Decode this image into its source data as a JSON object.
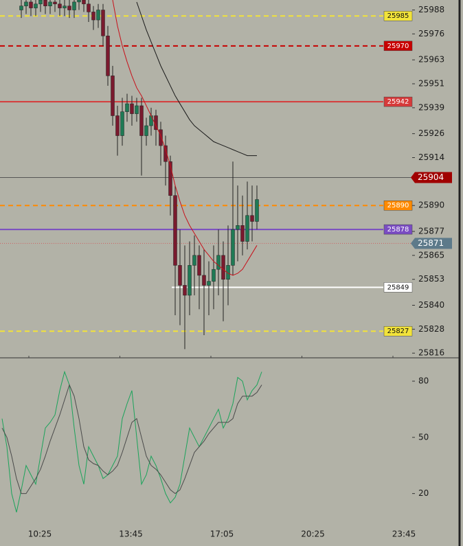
{
  "chart_data": [
    {
      "type": "candlestick",
      "ylim": [
        25814,
        25993
      ],
      "yticks": [
        25988,
        25976,
        25963,
        25951,
        25939,
        25926,
        25914,
        25890,
        25877,
        25865,
        25853,
        25840,
        25828,
        25816
      ],
      "open": [
        25988,
        25990,
        25992,
        25989,
        25991,
        25993,
        25990,
        25992,
        25991,
        25989,
        25990,
        25988,
        25992,
        25993,
        25991,
        25987,
        25983,
        25988,
        25975,
        25955,
        25935,
        25925,
        25937,
        25941,
        25936,
        25940,
        25925,
        25930,
        25935,
        25928,
        25920,
        25912,
        25895,
        25860,
        25850,
        25845,
        25860,
        25865,
        25855,
        25850,
        25852,
        25858,
        25865,
        25853,
        25860,
        25878,
        25880,
        25872,
        25885,
        25882
      ],
      "high": [
        25993,
        25995,
        25995,
        25994,
        25996,
        25996,
        25995,
        25995,
        25994,
        25993,
        25993,
        25995,
        25996,
        25996,
        25994,
        25990,
        25991,
        25991,
        25980,
        25960,
        25940,
        25944,
        25946,
        25945,
        25944,
        25944,
        25934,
        25939,
        25938,
        25932,
        25925,
        25915,
        25900,
        25878,
        25870,
        25872,
        25875,
        25870,
        25868,
        25862,
        25870,
        25878,
        25872,
        25880,
        25912,
        25900,
        25895,
        25902,
        25900,
        25900
      ],
      "low": [
        25984,
        25986,
        25985,
        25985,
        25987,
        25986,
        25986,
        25987,
        25985,
        25985,
        25984,
        25984,
        25988,
        25987,
        25982,
        25978,
        25979,
        25970,
        25950,
        25930,
        25915,
        25920,
        25932,
        25930,
        25932,
        25905,
        25920,
        25925,
        25920,
        25910,
        25900,
        25885,
        25835,
        25830,
        25818,
        25835,
        25845,
        25838,
        25825,
        25835,
        25838,
        25845,
        25832,
        25840,
        25855,
        25862,
        25865,
        25868,
        25872,
        25878
      ],
      "close": [
        25990,
        25992,
        25989,
        25991,
        25993,
        25990,
        25992,
        25991,
        25989,
        25990,
        25988,
        25992,
        25993,
        25991,
        25987,
        25983,
        25988,
        25975,
        25955,
        25935,
        25925,
        25937,
        25941,
        25936,
        25940,
        25925,
        25930,
        25935,
        25928,
        25920,
        25912,
        25895,
        25860,
        25850,
        25845,
        25860,
        25865,
        25855,
        25850,
        25852,
        25858,
        25865,
        25853,
        25860,
        25878,
        25880,
        25872,
        25885,
        25882,
        25893
      ],
      "up_color": "#1f7a55",
      "down_color": "#7a1a2e",
      "lines": [
        {
          "color": "#1a1a1a",
          "values": [
            null,
            null,
            null,
            null,
            null,
            null,
            null,
            null,
            null,
            null,
            null,
            null,
            null,
            null,
            null,
            null,
            null,
            null,
            null,
            null,
            null,
            null,
            null,
            null,
            25992,
            25985,
            25978,
            25972,
            25966,
            25960,
            25955,
            25950,
            25945,
            25941,
            25937,
            25933,
            25930,
            25928,
            25926,
            25924,
            25922,
            25921,
            25920,
            25919,
            25918,
            25917,
            25916,
            25915,
            25915,
            25915
          ]
        },
        {
          "color": "#c8101a",
          "values": [
            null,
            null,
            null,
            null,
            null,
            null,
            null,
            null,
            null,
            null,
            null,
            null,
            null,
            null,
            null,
            null,
            null,
            null,
            null,
            25993,
            25980,
            25970,
            25962,
            25955,
            25949,
            25945,
            25940,
            25935,
            25930,
            25925,
            25918,
            25910,
            25900,
            25892,
            25885,
            25880,
            25876,
            25872,
            25868,
            25865,
            25862,
            25860,
            25858,
            25856,
            25855,
            25856,
            25858,
            25862,
            25866,
            25870
          ]
        }
      ],
      "levels": [
        {
          "value": 25985,
          "color": "#f2e33a",
          "style": "dashed",
          "text_color": "#111111"
        },
        {
          "value": 25970,
          "color": "#c80000",
          "style": "dashed",
          "text_color": "#ffffff"
        },
        {
          "value": 25942,
          "color": "#d63a3a",
          "style": "solid",
          "text_color": "#ffffff"
        },
        {
          "value": 25904,
          "color": "#a00000",
          "style": "price-tag",
          "text_color": "#ffffff"
        },
        {
          "value": 25890,
          "color": "#ff8a00",
          "style": "dashed",
          "text_color": "#ffffff"
        },
        {
          "value": 25878,
          "color": "#7a4cc2",
          "style": "solid",
          "text_color": "#ffffff"
        },
        {
          "value": 25871,
          "color": "#5d7a8a",
          "style": "price-tag",
          "text_color": "#ffffff"
        },
        {
          "value": 25849,
          "color": "#ffffff",
          "style": "solid",
          "text_color": "#111111"
        },
        {
          "value": 25827,
          "color": "#f2e33a",
          "style": "dashed",
          "text_color": "#111111"
        }
      ],
      "time_labels": [
        "10:25",
        "13:45",
        "17:05",
        "20:25",
        "23:45"
      ]
    },
    {
      "type": "oscillator",
      "ylim": [
        -8,
        91
      ],
      "yticks": [
        80,
        50,
        20
      ],
      "series": [
        {
          "color": "#1aa35a",
          "values": [
            60,
            45,
            20,
            10,
            22,
            35,
            30,
            25,
            40,
            55,
            58,
            62,
            75,
            85,
            78,
            55,
            35,
            25,
            45,
            40,
            35,
            28,
            30,
            35,
            40,
            60,
            68,
            75,
            50,
            25,
            30,
            40,
            35,
            28,
            20,
            15,
            18,
            25,
            40,
            55,
            50,
            45,
            50,
            55,
            60,
            65,
            55,
            60,
            68,
            82,
            80,
            70,
            75,
            78,
            85
          ]
        },
        {
          "color": "#4a4a4a",
          "values": [
            55,
            50,
            40,
            28,
            20,
            20,
            24,
            28,
            33,
            40,
            48,
            55,
            62,
            70,
            78,
            72,
            60,
            45,
            38,
            36,
            35,
            32,
            30,
            32,
            35,
            42,
            50,
            58,
            60,
            50,
            40,
            35,
            33,
            30,
            26,
            22,
            20,
            22,
            28,
            35,
            42,
            45,
            48,
            52,
            55,
            58,
            58,
            58,
            60,
            68,
            72,
            72,
            72,
            74,
            78
          ]
        }
      ]
    }
  ]
}
